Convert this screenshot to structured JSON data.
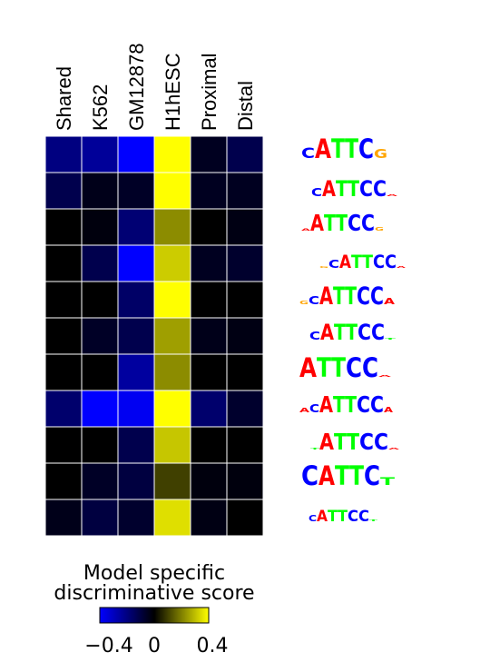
{
  "chart_data": {
    "type": "heatmap",
    "columns": [
      "Shared",
      "K562",
      "GM12878",
      "H1hESC",
      "Proximal",
      "Distal"
    ],
    "rows": [
      {
        "motif": "CATTCG",
        "values": [
          -0.2,
          -0.24,
          -0.4,
          0.4,
          -0.05,
          -0.12
        ]
      },
      {
        "motif": "CATTCC",
        "values": [
          -0.12,
          -0.04,
          -0.06,
          0.4,
          -0.05,
          -0.05
        ]
      },
      {
        "motif": "AATTCC",
        "values": [
          0.0,
          -0.02,
          -0.18,
          0.22,
          0.0,
          -0.03
        ]
      },
      {
        "motif": "GCATTCC",
        "values": [
          0.0,
          -0.12,
          -0.4,
          0.32,
          -0.05,
          -0.07
        ]
      },
      {
        "motif": "GCATTCA",
        "values": [
          0.0,
          0.0,
          -0.16,
          0.4,
          0.0,
          0.0
        ]
      },
      {
        "motif": "CATTCC",
        "values": [
          0.0,
          -0.06,
          -0.12,
          0.25,
          -0.04,
          -0.03
        ]
      },
      {
        "motif": "ATTCCT",
        "values": [
          0.0,
          0.0,
          -0.25,
          0.22,
          0.0,
          0.0
        ]
      },
      {
        "motif": "ACATTCA",
        "values": [
          -0.17,
          -0.4,
          -0.38,
          0.4,
          -0.17,
          -0.07
        ]
      },
      {
        "motif": "TATTCC",
        "values": [
          0.0,
          0.0,
          -0.12,
          0.31,
          0.0,
          0.0
        ]
      },
      {
        "motif": "CATTCT",
        "values": [
          0.0,
          -0.06,
          -0.1,
          0.1,
          -0.02,
          -0.02
        ]
      },
      {
        "motif": "CATTCC",
        "values": [
          -0.04,
          -0.1,
          -0.07,
          0.35,
          -0.03,
          0.0
        ]
      }
    ],
    "colorscale": {
      "min": -0.4,
      "mid": 0,
      "max": 0.4,
      "low_color": "#0000ff",
      "mid_color": "#000000",
      "high_color": "#ffff00"
    },
    "legend": {
      "title_line1": "Model specific",
      "title_line2": "discriminative score",
      "ticks": [
        "−0.4",
        "0",
        "0.4"
      ]
    }
  },
  "logo_colors": {
    "A": "#ff0000",
    "C": "#0000ff",
    "G": "#ffa500",
    "T": "#00ff00"
  },
  "logos": [
    [
      {
        "l": "C",
        "h": 0.55,
        "w": 15
      },
      {
        "l": "A",
        "h": 1,
        "w": 18
      },
      {
        "l": "T",
        "h": 1,
        "w": 15
      },
      {
        "l": "T",
        "h": 1,
        "w": 15
      },
      {
        "l": "C",
        "h": 1,
        "w": 17
      },
      {
        "l": "G",
        "h": 0.45,
        "w": 15
      }
    ],
    [
      {
        "l": "C",
        "h": 0.45,
        "w": 12
      },
      {
        "l": "A",
        "h": 0.9,
        "w": 15
      },
      {
        "l": "T",
        "h": 0.9,
        "w": 13
      },
      {
        "l": "T",
        "h": 0.9,
        "w": 13
      },
      {
        "l": "C",
        "h": 0.9,
        "w": 15
      },
      {
        "l": "C",
        "h": 0.9,
        "w": 15
      },
      {
        "l": "A",
        "h": 0.1,
        "w": 12
      }
    ],
    [
      {
        "l": "A",
        "h": 0.12,
        "w": 10
      },
      {
        "l": "A",
        "h": 0.95,
        "w": 15
      },
      {
        "l": "T",
        "h": 0.95,
        "w": 13
      },
      {
        "l": "T",
        "h": 0.95,
        "w": 13
      },
      {
        "l": "C",
        "h": 0.95,
        "w": 15
      },
      {
        "l": "C",
        "h": 0.95,
        "w": 15
      },
      {
        "l": "G",
        "h": 0.2,
        "w": 10
      }
    ],
    [
      {
        "l": "G",
        "h": 0.12,
        "w": 10
      },
      {
        "l": "C",
        "h": 0.55,
        "w": 12
      },
      {
        "l": "A",
        "h": 0.85,
        "w": 13
      },
      {
        "l": "T",
        "h": 0.85,
        "w": 12
      },
      {
        "l": "T",
        "h": 0.85,
        "w": 12
      },
      {
        "l": "C",
        "h": 0.85,
        "w": 13
      },
      {
        "l": "C",
        "h": 0.85,
        "w": 13
      },
      {
        "l": "A",
        "h": 0.1,
        "w": 10
      }
    ],
    [
      {
        "l": "G",
        "h": 0.2,
        "w": 10
      },
      {
        "l": "C",
        "h": 0.45,
        "w": 12
      },
      {
        "l": "A",
        "h": 0.95,
        "w": 15
      },
      {
        "l": "T",
        "h": 0.95,
        "w": 13
      },
      {
        "l": "T",
        "h": 0.95,
        "w": 13
      },
      {
        "l": "C",
        "h": 0.95,
        "w": 15
      },
      {
        "l": "C",
        "h": 0.95,
        "w": 15
      },
      {
        "l": "A",
        "h": 0.35,
        "w": 12
      }
    ],
    [
      {
        "l": "C",
        "h": 0.45,
        "w": 12
      },
      {
        "l": "A",
        "h": 0.9,
        "w": 15
      },
      {
        "l": "T",
        "h": 0.9,
        "w": 13
      },
      {
        "l": "T",
        "h": 0.9,
        "w": 13
      },
      {
        "l": "C",
        "h": 0.9,
        "w": 15
      },
      {
        "l": "C",
        "h": 0.9,
        "w": 15
      },
      {
        "l": "T",
        "h": 0.1,
        "w": 12
      }
    ],
    [
      {
        "l": "A",
        "h": 1,
        "w": 19
      },
      {
        "l": "T",
        "h": 1,
        "w": 16
      },
      {
        "l": "T",
        "h": 1,
        "w": 16
      },
      {
        "l": "C",
        "h": 1,
        "w": 18
      },
      {
        "l": "C",
        "h": 1,
        "w": 18
      },
      {
        "l": "A",
        "h": 0.1,
        "w": 14
      }
    ],
    [
      {
        "l": "A",
        "h": 0.25,
        "w": 11
      },
      {
        "l": "C",
        "h": 0.45,
        "w": 11
      },
      {
        "l": "A",
        "h": 0.95,
        "w": 15
      },
      {
        "l": "T",
        "h": 0.95,
        "w": 13
      },
      {
        "l": "T",
        "h": 0.95,
        "w": 13
      },
      {
        "l": "C",
        "h": 0.95,
        "w": 15
      },
      {
        "l": "C",
        "h": 0.95,
        "w": 15
      },
      {
        "l": "A",
        "h": 0.3,
        "w": 10
      }
    ],
    [
      {
        "l": "T",
        "h": 0.1,
        "w": 10
      },
      {
        "l": "A",
        "h": 0.95,
        "w": 16
      },
      {
        "l": "T",
        "h": 0.95,
        "w": 14
      },
      {
        "l": "T",
        "h": 0.95,
        "w": 14
      },
      {
        "l": "C",
        "h": 0.95,
        "w": 16
      },
      {
        "l": "C",
        "h": 0.95,
        "w": 16
      },
      {
        "l": "A",
        "h": 0.1,
        "w": 12
      }
    ],
    [
      {
        "l": "C",
        "h": 1,
        "w": 19
      },
      {
        "l": "A",
        "h": 1,
        "w": 18
      },
      {
        "l": "T",
        "h": 1,
        "w": 16
      },
      {
        "l": "T",
        "h": 1,
        "w": 16
      },
      {
        "l": "C",
        "h": 1,
        "w": 18
      },
      {
        "l": "T",
        "h": 0.4,
        "w": 16
      }
    ],
    [
      {
        "l": "C",
        "h": 0.45,
        "w": 9
      },
      {
        "l": "A",
        "h": 0.8,
        "w": 12
      },
      {
        "l": "T",
        "h": 0.8,
        "w": 11
      },
      {
        "l": "T",
        "h": 0.8,
        "w": 11
      },
      {
        "l": "C",
        "h": 0.8,
        "w": 12
      },
      {
        "l": "C",
        "h": 0.8,
        "w": 12
      },
      {
        "l": "T",
        "h": 0.08,
        "w": 9
      }
    ]
  ]
}
